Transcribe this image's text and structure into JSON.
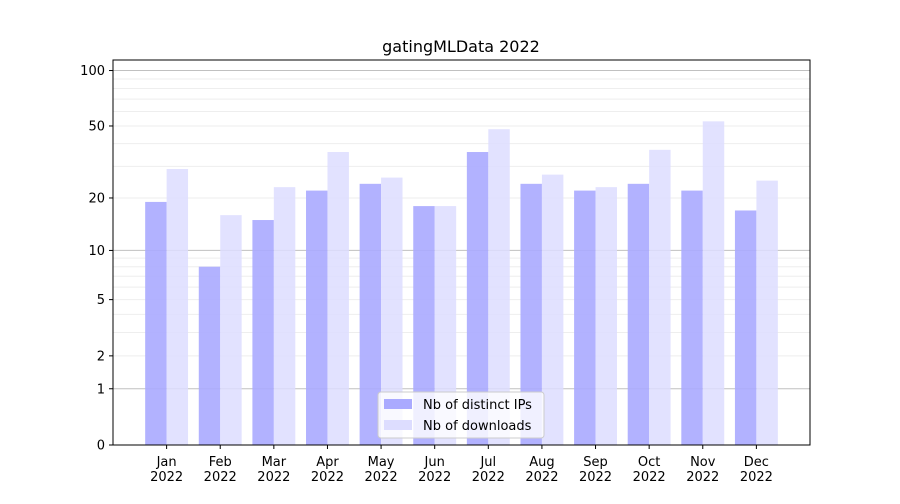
{
  "chart_data": {
    "type": "bar",
    "title": "gatingMLData 2022",
    "xlabel": "",
    "ylabel": "",
    "yscale": "log(1+y)",
    "ylim": [
      0,
      114
    ],
    "yticks": [
      0,
      1,
      2,
      5,
      10,
      20,
      50,
      100
    ],
    "grid": true,
    "legend_position": "bottom-center",
    "categories": [
      "Jan\n2022",
      "Feb\n2022",
      "Mar\n2022",
      "Apr\n2022",
      "May\n2022",
      "Jun\n2022",
      "Jul\n2022",
      "Aug\n2022",
      "Sep\n2022",
      "Oct\n2022",
      "Nov\n2022",
      "Dec\n2022"
    ],
    "series": [
      {
        "name": "Nb of distinct IPs",
        "color": "#aaaaff",
        "values": [
          19,
          8,
          15,
          22,
          24,
          18,
          36,
          24,
          22,
          24,
          22,
          17
        ]
      },
      {
        "name": "Nb of downloads",
        "color": "#ddddff",
        "values": [
          29,
          16,
          23,
          36,
          26,
          18,
          48,
          27,
          23,
          37,
          53,
          25
        ]
      }
    ]
  }
}
